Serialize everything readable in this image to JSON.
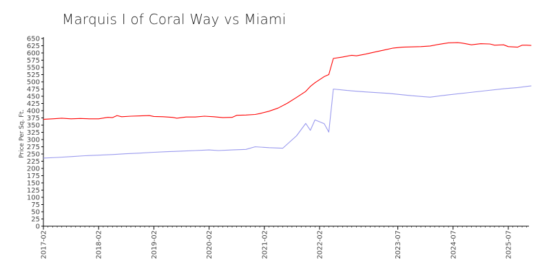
{
  "chart_data": {
    "type": "line",
    "title": "Marquis I of Coral Way vs Miami",
    "xlabel": "",
    "ylabel": "Price Per Sq. Ft.",
    "ylim": [
      0,
      650
    ],
    "yticks": [
      0,
      25,
      50,
      75,
      100,
      125,
      150,
      175,
      200,
      225,
      250,
      275,
      300,
      325,
      350,
      375,
      400,
      425,
      450,
      475,
      500,
      525,
      550,
      575,
      600,
      625,
      650
    ],
    "xlim": [
      "2017-02",
      "2025-12"
    ],
    "xticks": [
      "2017-02",
      "2018-02",
      "2019-02",
      "2020-02",
      "2021-02",
      "2022-02",
      "2023-07",
      "2024-07",
      "2025-07"
    ],
    "grid": false,
    "legend": "none",
    "series": [
      {
        "color": "#ff0000",
        "points": [
          [
            "2017-02",
            370
          ],
          [
            "2017-04",
            372
          ],
          [
            "2017-06",
            374
          ],
          [
            "2017-08",
            372
          ],
          [
            "2017-10",
            373
          ],
          [
            "2017-12",
            372
          ],
          [
            "2018-02",
            372
          ],
          [
            "2018-04",
            377
          ],
          [
            "2018-05",
            376
          ],
          [
            "2018-06",
            383
          ],
          [
            "2018-07",
            379
          ],
          [
            "2018-09",
            381
          ],
          [
            "2018-11",
            382
          ],
          [
            "2019-01",
            383
          ],
          [
            "2019-02",
            380
          ],
          [
            "2019-04",
            379
          ],
          [
            "2019-06",
            377
          ],
          [
            "2019-07",
            374
          ],
          [
            "2019-09",
            378
          ],
          [
            "2019-11",
            378
          ],
          [
            "2020-01",
            381
          ],
          [
            "2020-03",
            379
          ],
          [
            "2020-05",
            376
          ],
          [
            "2020-07",
            377
          ],
          [
            "2020-08",
            384
          ],
          [
            "2020-10",
            385
          ],
          [
            "2020-12",
            387
          ],
          [
            "2021-01",
            390
          ],
          [
            "2021-03",
            398
          ],
          [
            "2021-05",
            409
          ],
          [
            "2021-07",
            426
          ],
          [
            "2021-09",
            446
          ],
          [
            "2021-11",
            467
          ],
          [
            "2021-12",
            484
          ],
          [
            "2022-01",
            497
          ],
          [
            "2022-03",
            518
          ],
          [
            "2022-04",
            525
          ],
          [
            "2022-05",
            581
          ],
          [
            "2022-07",
            586
          ],
          [
            "2022-09",
            592
          ],
          [
            "2022-10",
            590
          ],
          [
            "2022-12",
            596
          ],
          [
            "2023-02",
            603
          ],
          [
            "2023-04",
            610
          ],
          [
            "2023-06",
            617
          ],
          [
            "2023-08",
            620
          ],
          [
            "2023-10",
            621
          ],
          [
            "2023-12",
            622
          ],
          [
            "2024-02",
            624
          ],
          [
            "2024-04",
            630
          ],
          [
            "2024-06",
            635
          ],
          [
            "2024-08",
            636
          ],
          [
            "2024-09",
            634
          ],
          [
            "2024-11",
            628
          ],
          [
            "2025-01",
            632
          ],
          [
            "2025-03",
            631
          ],
          [
            "2025-04",
            627
          ],
          [
            "2025-06",
            628
          ],
          [
            "2025-07",
            622
          ],
          [
            "2025-09",
            620
          ],
          [
            "2025-10",
            627
          ],
          [
            "2025-11",
            627
          ],
          [
            "2025-12",
            626
          ]
        ]
      },
      {
        "color": "#9999ee",
        "points": [
          [
            "2017-02",
            236
          ],
          [
            "2017-05",
            238
          ],
          [
            "2017-08",
            241
          ],
          [
            "2017-11",
            244
          ],
          [
            "2018-02",
            246
          ],
          [
            "2018-05",
            248
          ],
          [
            "2018-08",
            251
          ],
          [
            "2018-11",
            253
          ],
          [
            "2019-02",
            256
          ],
          [
            "2019-05",
            258
          ],
          [
            "2019-08",
            260
          ],
          [
            "2019-11",
            262
          ],
          [
            "2020-02",
            264
          ],
          [
            "2020-04",
            262
          ],
          [
            "2020-07",
            264
          ],
          [
            "2020-10",
            266
          ],
          [
            "2020-12",
            275
          ],
          [
            "2021-03",
            272
          ],
          [
            "2021-06",
            270
          ],
          [
            "2021-09",
            313
          ],
          [
            "2021-11",
            356
          ],
          [
            "2021-12",
            332
          ],
          [
            "2022-01",
            368
          ],
          [
            "2022-03",
            355
          ],
          [
            "2022-04",
            326
          ],
          [
            "2022-05",
            475
          ],
          [
            "2022-08",
            470
          ],
          [
            "2022-12",
            465
          ],
          [
            "2023-05",
            460
          ],
          [
            "2023-10",
            452
          ],
          [
            "2024-02",
            447
          ],
          [
            "2024-06",
            455
          ],
          [
            "2024-10",
            462
          ],
          [
            "2025-02",
            469
          ],
          [
            "2025-06",
            476
          ],
          [
            "2025-09",
            480
          ],
          [
            "2025-12",
            486
          ]
        ]
      }
    ]
  }
}
